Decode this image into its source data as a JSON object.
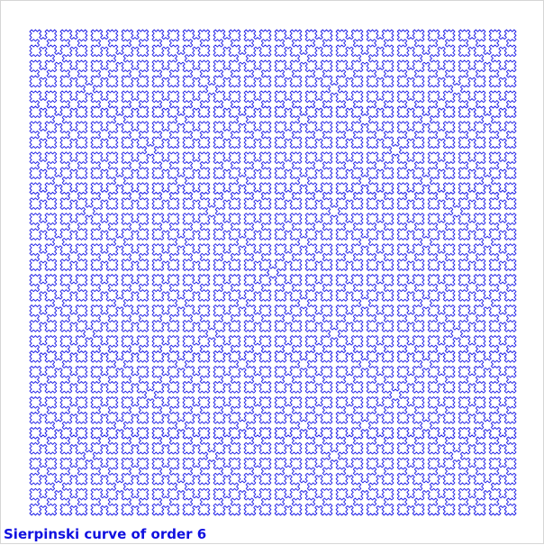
{
  "title": "Sierpinski curve of order 6",
  "curve": {
    "name": "Sierpinski curve",
    "order": 6,
    "color": "#1a1ae6"
  },
  "colors": {
    "background": "#ffffff",
    "border": "#d6d6d6",
    "title": "#1010e0"
  }
}
